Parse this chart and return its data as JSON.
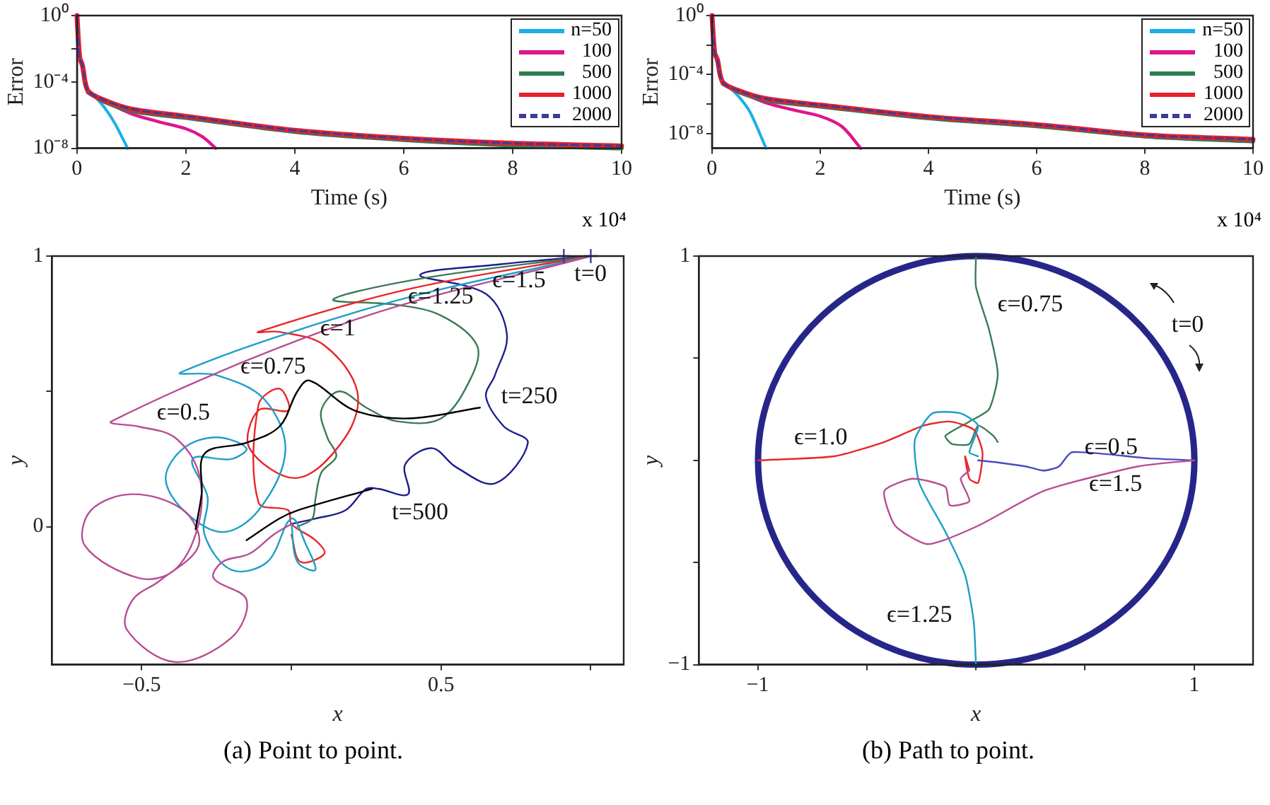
{
  "chart_data": [
    {
      "type": "line",
      "xlabel": "Time (s)",
      "ylabel": "Error",
      "log": "y",
      "xlim": [
        0,
        10
      ],
      "xticks": [
        0,
        2,
        4,
        6,
        8,
        10
      ],
      "ylim": [
        1e-08,
        1
      ],
      "yticks": [
        {
          "value": 1,
          "label": "10⁰"
        },
        {
          "value": 0.01,
          "label": null
        },
        {
          "value": 0.0001,
          "label": "10⁻⁴"
        },
        {
          "value": 1e-06,
          "label": null
        },
        {
          "value": 1e-08,
          "label": "10⁻⁸"
        }
      ],
      "legend": "top right",
      "annotations": [
        "x 10⁴"
      ],
      "series": [
        {
          "name": "n=50",
          "color": "#1ab0e8",
          "x": [
            0.25,
            0.5,
            0.7,
            0.93
          ],
          "values": [
            2.5e-05,
            3e-06,
            3e-07,
            1e-08
          ]
        },
        {
          "name": "100",
          "color": "#e0148c",
          "x": [
            0.4,
            1,
            1.5,
            2,
            2.3,
            2.55
          ],
          "values": [
            1e-05,
            1.2e-06,
            4e-07,
            1.5e-07,
            5e-08,
            1e-08
          ]
        },
        {
          "name": "500",
          "color": "#2e7d4f",
          "x": [
            0.2,
            0.5,
            1,
            2,
            4,
            6,
            8,
            10
          ],
          "values": [
            2.4e-05,
            6.4e-06,
            1.8e-06,
            6.8e-07,
            1e-07,
            3.2e-08,
            1.5e-08,
            1e-08
          ]
        },
        {
          "name": "1000",
          "color": "#e8202a",
          "x": [
            0,
            0.05,
            0.1,
            0.2,
            0.5,
            1,
            2,
            4,
            6,
            8,
            10
          ],
          "values": [
            1,
            0.003,
            0.001,
            3e-05,
            8e-06,
            2.3e-06,
            8.5e-07,
            1.2e-07,
            4e-08,
            2e-08,
            1.4e-08
          ]
        },
        {
          "name": "2000",
          "color": "#3b3b9a",
          "line_style": "dashed",
          "x": [
            0,
            0.05,
            0.1,
            0.2,
            0.5,
            1,
            2,
            4,
            6,
            8,
            10
          ],
          "values": [
            1,
            0.003,
            0.001,
            3e-05,
            8e-06,
            2.3e-06,
            8.5e-07,
            1.2e-07,
            4e-08,
            2e-08,
            1.4e-08
          ]
        }
      ]
    },
    {
      "type": "line",
      "xlabel": "Time (s)",
      "ylabel": "Error",
      "log": "y",
      "xlim": [
        0,
        10
      ],
      "xticks": [
        0,
        2,
        4,
        6,
        8,
        10
      ],
      "ylim": [
        1e-09,
        1
      ],
      "yticks": [
        {
          "value": 1,
          "label": "10⁰"
        },
        {
          "value": 0.01,
          "label": null
        },
        {
          "value": 0.0001,
          "label": "10⁻⁴"
        },
        {
          "value": 1e-06,
          "label": null
        },
        {
          "value": 1e-08,
          "label": "10⁻⁸"
        }
      ],
      "legend": "top right",
      "annotations": [
        "x 10⁴"
      ],
      "series": [
        {
          "name": "n=50",
          "color": "#1ab0e8",
          "x": [
            0.25,
            0.5,
            0.7,
            1.0
          ],
          "values": [
            2.5e-05,
            3e-06,
            3e-07,
            1e-09
          ]
        },
        {
          "name": "100",
          "color": "#e0148c",
          "x": [
            0.4,
            1,
            1.5,
            2,
            2.4,
            2.75
          ],
          "values": [
            1e-05,
            1.2e-06,
            4e-07,
            1.5e-07,
            3e-08,
            1e-09
          ]
        },
        {
          "name": "500",
          "color": "#2e7d4f",
          "x": [
            0.2,
            0.5,
            1,
            2,
            4,
            6,
            8,
            10
          ],
          "values": [
            2.4e-05,
            6.4e-06,
            1.8e-06,
            6.8e-07,
            1.1e-07,
            3.2e-08,
            6.5e-09,
            3e-09
          ]
        },
        {
          "name": "1000",
          "color": "#e8202a",
          "x": [
            0,
            0.05,
            0.1,
            0.2,
            0.5,
            1,
            2,
            4,
            6,
            8,
            10
          ],
          "values": [
            1,
            0.003,
            0.001,
            3e-05,
            8e-06,
            2.3e-06,
            8.5e-07,
            1.4e-07,
            4e-08,
            8e-09,
            4e-09
          ]
        },
        {
          "name": "2000",
          "color": "#3b3b9a",
          "line_style": "dashed",
          "x": [
            0,
            0.05,
            0.1,
            0.2,
            0.5,
            1,
            2,
            4,
            6,
            8,
            10
          ],
          "values": [
            1,
            0.003,
            0.001,
            3e-05,
            8e-06,
            2.3e-06,
            8.5e-07,
            1.4e-07,
            4e-08,
            8e-09,
            4e-09
          ]
        }
      ]
    },
    {
      "type": "line",
      "xlabel": "x",
      "ylabel": "y",
      "xlim": [
        -0.8,
        1.11
      ],
      "xticks": [
        {
          "value": -0.5,
          "label": "−0.5"
        },
        {
          "value": 0,
          "label": null
        },
        0.5,
        {
          "value": 1,
          "label": null
        }
      ],
      "ylim": [
        -0.51,
        1
      ],
      "yticks": [
        {
          "value": 0,
          "label": "0"
        },
        {
          "value": 0.5,
          "label": null
        },
        {
          "value": 1,
          "label": "1"
        }
      ],
      "annotations": [
        "t=0",
        "(a) Point to point."
      ],
      "series": [
        {
          "name": "ϵ=1.5",
          "color": "#1f1f8f",
          "x": [
            1.0,
            0.7,
            0.43,
            0.65,
            0.72,
            0.68,
            0.65,
            0.71,
            0.79,
            0.68,
            0.55,
            0.47,
            0.38,
            0.39,
            0.29,
            0.25,
            0.18,
            0.08,
            0.0
          ],
          "values": [
            1.0,
            0.97,
            0.93,
            0.86,
            0.71,
            0.56,
            0.48,
            0.37,
            0.31,
            0.16,
            0.22,
            0.29,
            0.23,
            0.12,
            0.14,
            0.14,
            0.06,
            0.03,
            0.01
          ]
        },
        {
          "name": "ϵ=1.25",
          "color": "#3c7a55",
          "x": [
            1.0,
            0.45,
            0.14,
            0.35,
            0.5,
            0.62,
            0.6,
            0.5,
            0.35,
            0.25,
            0.16,
            0.1,
            0.12,
            0.15,
            0.1,
            0.08,
            0.07,
            0.02
          ],
          "values": [
            1.0,
            0.92,
            0.84,
            0.82,
            0.78,
            0.67,
            0.55,
            0.4,
            0.39,
            0.44,
            0.5,
            0.43,
            0.33,
            0.26,
            0.2,
            0.1,
            0.03,
            0.0
          ]
        },
        {
          "name": "ϵ=1",
          "color": "#e8262a",
          "x": [
            1.0,
            0.4,
            -0.11,
            -0.04,
            0.11,
            0.22,
            0.18,
            0.02,
            -0.14,
            -0.11,
            -0.01,
            -0.04,
            -0.11,
            -0.11,
            -0.01,
            0.0,
            0.08,
            0.11,
            0.03,
            0.0
          ],
          "values": [
            1.0,
            0.88,
            0.72,
            0.72,
            0.67,
            0.5,
            0.33,
            0.18,
            0.29,
            0.43,
            0.43,
            0.51,
            0.45,
            0.09,
            0.06,
            0.01,
            -0.05,
            -0.1,
            -0.13,
            -0.03
          ]
        },
        {
          "name": "ϵ=0.75",
          "color": "#1d9fc8",
          "x": [
            1.0,
            0.3,
            -0.37,
            -0.25,
            -0.09,
            -0.02,
            -0.11,
            -0.23,
            -0.36,
            -0.42,
            -0.36,
            -0.25,
            -0.15,
            -0.2,
            -0.33,
            -0.28,
            -0.29,
            -0.2,
            -0.08,
            0.0,
            0.05,
            0.08,
            0.02,
            0.0
          ],
          "values": [
            1.0,
            0.82,
            0.57,
            0.56,
            0.47,
            0.28,
            0.06,
            -0.02,
            0.06,
            0.18,
            0.29,
            0.33,
            0.29,
            0.25,
            0.25,
            0.11,
            -0.03,
            -0.16,
            -0.13,
            0.03,
            -0.07,
            -0.16,
            -0.13,
            0.01
          ]
        },
        {
          "name": "ϵ=0.5",
          "color": "#b84d95",
          "x": [
            1.0,
            0.2,
            -0.6,
            -0.51,
            -0.39,
            -0.31,
            -0.31,
            -0.39,
            -0.51,
            -0.69,
            -0.67,
            -0.53,
            -0.36,
            -0.31,
            -0.44,
            -0.53,
            -0.55,
            -0.39,
            -0.2,
            -0.15,
            -0.26,
            -0.23,
            -0.14,
            -0.06,
            0.0
          ],
          "values": [
            1.0,
            0.76,
            0.39,
            0.37,
            0.33,
            0.2,
            0.01,
            -0.16,
            -0.19,
            -0.07,
            0.06,
            0.12,
            0.06,
            -0.07,
            -0.2,
            -0.27,
            -0.38,
            -0.5,
            -0.41,
            -0.27,
            -0.19,
            -0.13,
            -0.1,
            -0.03,
            0.01
          ]
        },
        {
          "name": "t=250",
          "color": "#000000",
          "x": [
            0.63,
            0.39,
            0.21,
            0.06,
            0.02,
            -0.04,
            -0.15,
            -0.29,
            -0.3,
            -0.32
          ],
          "values": [
            0.44,
            0.4,
            0.43,
            0.54,
            0.5,
            0.37,
            0.31,
            0.27,
            0.12,
            -0.01
          ]
        },
        {
          "name": "t=500",
          "color": "#000000",
          "x": [
            0.27,
            0.02,
            -0.04,
            -0.15
          ],
          "values": [
            0.14,
            0.06,
            0.03,
            -0.05
          ]
        },
        {
          "type": "scatter",
          "marker": "cross",
          "color": "#3b3bb0",
          "x": [
            0.91,
            1.0
          ],
          "values": [
            1,
            1
          ]
        }
      ]
    },
    {
      "type": "line",
      "xlabel": "x",
      "ylabel": "y",
      "xlim": [
        -1.27,
        1.27
      ],
      "xticks": [
        {
          "value": -1,
          "label": "−1"
        },
        {
          "value": -0.5,
          "label": null
        },
        {
          "value": 0,
          "label": null
        },
        {
          "value": 0.5,
          "label": null
        },
        1
      ],
      "ylim": [
        -1,
        1
      ],
      "yticks": [
        {
          "value": -1,
          "label": "−1"
        },
        {
          "value": -0.5,
          "label": null
        },
        {
          "value": 0,
          "label": null
        },
        {
          "value": 0.5,
          "label": null
        },
        1
      ],
      "annotations": [
        "t=0",
        "(b) Path to point."
      ],
      "series": [
        {
          "name": "ϵ=0.75",
          "color": "#3c7a55",
          "x": [
            0,
            0,
            0.06,
            0.1,
            0.06,
            -0.03,
            -0.14,
            -0.11,
            -0.03,
            0.01,
            0.08,
            0.1
          ],
          "values": [
            1.0,
            0.85,
            0.64,
            0.42,
            0.25,
            0.19,
            0.12,
            0.08,
            0.08,
            0.17,
            0.12,
            0.09
          ]
        },
        {
          "name": "ϵ=1.0",
          "color": "#e8262a",
          "x": [
            -1,
            -0.65,
            -0.42,
            -0.24,
            -0.12,
            -0.01,
            0.03,
            0.01,
            -0.03,
            -0.05,
            -0.03
          ],
          "values": [
            0,
            0.02,
            0.09,
            0.17,
            0.19,
            0.15,
            0.04,
            -0.11,
            -0.09,
            0.02,
            -0.05
          ]
        },
        {
          "name": "ϵ=1.25",
          "color": "#1d9fc8",
          "x": [
            0,
            -0.01,
            -0.05,
            -0.14,
            -0.26,
            -0.28,
            -0.2,
            -0.07,
            0.01,
            -0.03,
            0.01
          ],
          "values": [
            -1,
            -0.79,
            -0.56,
            -0.35,
            -0.11,
            0.1,
            0.23,
            0.23,
            0.17,
            0.04,
            0.02
          ]
        },
        {
          "name": "ϵ=0.5",
          "color": "#4a4ac0",
          "x": [
            1,
            0.79,
            0.44,
            0.38,
            0.31,
            0.23,
            0.1,
            0.01
          ],
          "values": [
            0,
            0.01,
            0.04,
            -0.03,
            -0.05,
            -0.03,
            -0.01,
            0
          ]
        },
        {
          "name": "ϵ=1.5",
          "color": "#b84d95",
          "x": [
            1,
            0.74,
            0.31,
            0.01,
            -0.22,
            -0.37,
            -0.42,
            -0.29,
            -0.14,
            -0.12,
            -0.03,
            -0.07,
            -0.03
          ],
          "values": [
            0,
            -0.03,
            -0.15,
            -0.32,
            -0.41,
            -0.32,
            -0.15,
            -0.09,
            -0.13,
            -0.22,
            -0.2,
            -0.09,
            -0.05
          ]
        }
      ]
    }
  ]
}
